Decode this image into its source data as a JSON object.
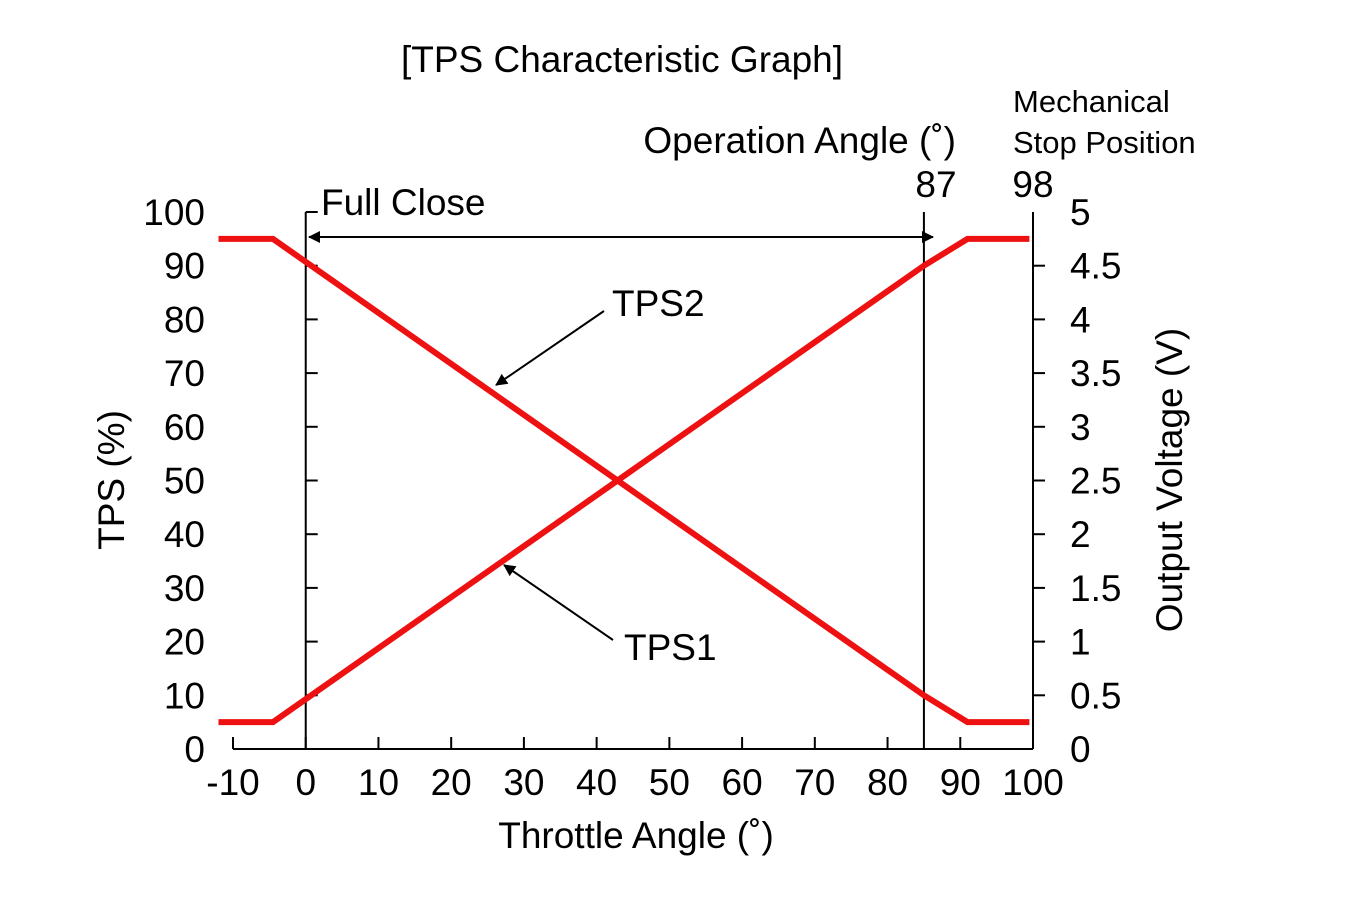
{
  "chart_data": {
    "type": "line",
    "title": "[TPS Characteristic Graph]",
    "xlabel": "Throttle Angle (˚)",
    "ylabel": "TPS (%)",
    "y2label": "Output Voltage (V)",
    "xlim": [
      -10,
      100
    ],
    "ylim": [
      0,
      100
    ],
    "y2lim": [
      0,
      5
    ],
    "x_ticks": [
      -10,
      0,
      10,
      20,
      30,
      40,
      50,
      60,
      70,
      80,
      90,
      100
    ],
    "y_ticks": [
      0,
      10,
      20,
      30,
      40,
      50,
      60,
      70,
      80,
      90,
      100
    ],
    "y2_ticks": [
      "0",
      "0.5",
      "1",
      "1.5",
      "2",
      "2.5",
      "3",
      "3.5",
      "4",
      "4.5",
      "5"
    ],
    "y2_tick_values": [
      0,
      0.5,
      1,
      1.5,
      2,
      2.5,
      3,
      3.5,
      4,
      4.5,
      5
    ],
    "series": [
      {
        "name": "TPS1",
        "color": "#ee1111",
        "points": [
          [
            -12,
            5
          ],
          [
            -4.5,
            5
          ],
          [
            85,
            90
          ],
          [
            91,
            95
          ],
          [
            99.5,
            95
          ]
        ]
      },
      {
        "name": "TPS2",
        "color": "#ee1111",
        "points": [
          [
            -12,
            95
          ],
          [
            -4.5,
            95
          ],
          [
            85,
            10
          ],
          [
            91,
            5
          ],
          [
            99.5,
            5
          ]
        ]
      }
    ],
    "vertical_lines": [
      0,
      85,
      99
    ],
    "annotations": {
      "full_close": "Full Close",
      "operation_angle": "Operation Angle (˚)",
      "operation_value": "87",
      "mechanical_line1": "Mechanical",
      "mechanical_line2": "Stop Position",
      "mechanical_value": "98",
      "tps1_label": "TPS1",
      "tps2_label": "TPS2"
    }
  }
}
